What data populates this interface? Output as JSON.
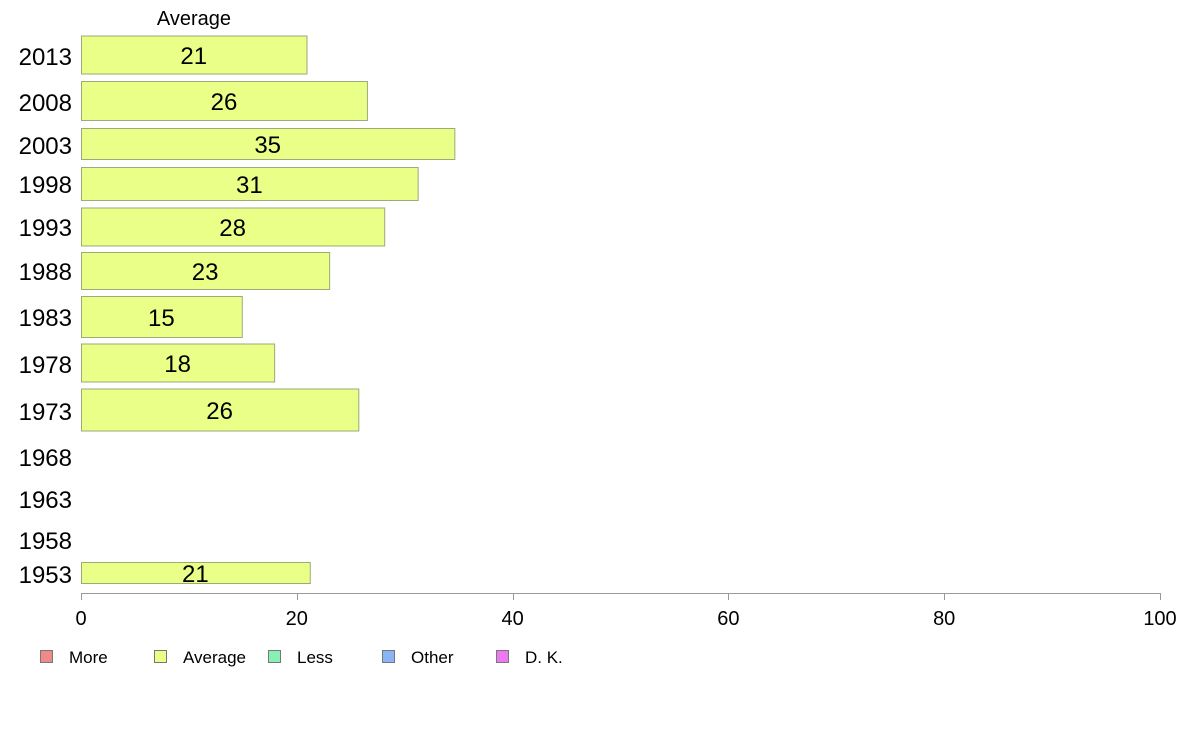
{
  "chart_data": {
    "type": "bar",
    "orientation": "horizontal",
    "series_title": "Average",
    "categories": [
      "2013",
      "2008",
      "2003",
      "1998",
      "1993",
      "1988",
      "1983",
      "1978",
      "1973",
      "1968",
      "1963",
      "1958",
      "1953"
    ],
    "series": [
      {
        "name": "Average",
        "values": [
          21,
          26,
          35,
          31,
          28,
          23,
          15,
          18,
          26,
          null,
          null,
          null,
          21
        ]
      }
    ],
    "bar_values": [
      20.9,
      26.5,
      34.6,
      31.2,
      28.1,
      23.0,
      14.9,
      17.9,
      25.7,
      null,
      null,
      null,
      21.2
    ],
    "xlim": [
      0,
      100
    ],
    "xticks": [
      "0",
      "20",
      "40",
      "60",
      "80",
      "100"
    ],
    "grid": false,
    "legend_position": "bottom-left",
    "legend": [
      {
        "name": "More",
        "color": "#f08a88"
      },
      {
        "name": "Average",
        "color": "#eaff88"
      },
      {
        "name": "Less",
        "color": "#88f0b4"
      },
      {
        "name": "Other",
        "color": "#8ab4f8"
      },
      {
        "name": "D. K.",
        "color": "#ee78f0"
      }
    ],
    "bar_color": "#eaff88",
    "bar_border": "#9aaa78",
    "axis_color": "#999999"
  }
}
